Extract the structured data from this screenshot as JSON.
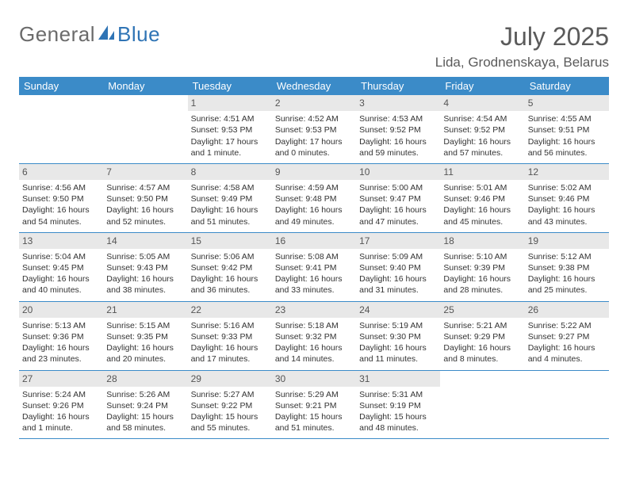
{
  "logo": {
    "text1": "General",
    "text2": "Blue"
  },
  "title": "July 2025",
  "location": "Lida, Grodnenskaya, Belarus",
  "weekdays": [
    "Sunday",
    "Monday",
    "Tuesday",
    "Wednesday",
    "Thursday",
    "Friday",
    "Saturday"
  ],
  "colors": {
    "header_bg": "#3b8bc8",
    "daynum_bg": "#e8e8e8",
    "row_border": "#3b8bc8"
  },
  "weeks": [
    [
      {
        "n": "",
        "sunrise": "",
        "sunset": "",
        "daylight1": "",
        "daylight2": "",
        "empty": true
      },
      {
        "n": "",
        "sunrise": "",
        "sunset": "",
        "daylight1": "",
        "daylight2": "",
        "empty": true
      },
      {
        "n": "1",
        "sunrise": "Sunrise: 4:51 AM",
        "sunset": "Sunset: 9:53 PM",
        "daylight1": "Daylight: 17 hours",
        "daylight2": "and 1 minute."
      },
      {
        "n": "2",
        "sunrise": "Sunrise: 4:52 AM",
        "sunset": "Sunset: 9:53 PM",
        "daylight1": "Daylight: 17 hours",
        "daylight2": "and 0 minutes."
      },
      {
        "n": "3",
        "sunrise": "Sunrise: 4:53 AM",
        "sunset": "Sunset: 9:52 PM",
        "daylight1": "Daylight: 16 hours",
        "daylight2": "and 59 minutes."
      },
      {
        "n": "4",
        "sunrise": "Sunrise: 4:54 AM",
        "sunset": "Sunset: 9:52 PM",
        "daylight1": "Daylight: 16 hours",
        "daylight2": "and 57 minutes."
      },
      {
        "n": "5",
        "sunrise": "Sunrise: 4:55 AM",
        "sunset": "Sunset: 9:51 PM",
        "daylight1": "Daylight: 16 hours",
        "daylight2": "and 56 minutes."
      }
    ],
    [
      {
        "n": "6",
        "sunrise": "Sunrise: 4:56 AM",
        "sunset": "Sunset: 9:50 PM",
        "daylight1": "Daylight: 16 hours",
        "daylight2": "and 54 minutes."
      },
      {
        "n": "7",
        "sunrise": "Sunrise: 4:57 AM",
        "sunset": "Sunset: 9:50 PM",
        "daylight1": "Daylight: 16 hours",
        "daylight2": "and 52 minutes."
      },
      {
        "n": "8",
        "sunrise": "Sunrise: 4:58 AM",
        "sunset": "Sunset: 9:49 PM",
        "daylight1": "Daylight: 16 hours",
        "daylight2": "and 51 minutes."
      },
      {
        "n": "9",
        "sunrise": "Sunrise: 4:59 AM",
        "sunset": "Sunset: 9:48 PM",
        "daylight1": "Daylight: 16 hours",
        "daylight2": "and 49 minutes."
      },
      {
        "n": "10",
        "sunrise": "Sunrise: 5:00 AM",
        "sunset": "Sunset: 9:47 PM",
        "daylight1": "Daylight: 16 hours",
        "daylight2": "and 47 minutes."
      },
      {
        "n": "11",
        "sunrise": "Sunrise: 5:01 AM",
        "sunset": "Sunset: 9:46 PM",
        "daylight1": "Daylight: 16 hours",
        "daylight2": "and 45 minutes."
      },
      {
        "n": "12",
        "sunrise": "Sunrise: 5:02 AM",
        "sunset": "Sunset: 9:46 PM",
        "daylight1": "Daylight: 16 hours",
        "daylight2": "and 43 minutes."
      }
    ],
    [
      {
        "n": "13",
        "sunrise": "Sunrise: 5:04 AM",
        "sunset": "Sunset: 9:45 PM",
        "daylight1": "Daylight: 16 hours",
        "daylight2": "and 40 minutes."
      },
      {
        "n": "14",
        "sunrise": "Sunrise: 5:05 AM",
        "sunset": "Sunset: 9:43 PM",
        "daylight1": "Daylight: 16 hours",
        "daylight2": "and 38 minutes."
      },
      {
        "n": "15",
        "sunrise": "Sunrise: 5:06 AM",
        "sunset": "Sunset: 9:42 PM",
        "daylight1": "Daylight: 16 hours",
        "daylight2": "and 36 minutes."
      },
      {
        "n": "16",
        "sunrise": "Sunrise: 5:08 AM",
        "sunset": "Sunset: 9:41 PM",
        "daylight1": "Daylight: 16 hours",
        "daylight2": "and 33 minutes."
      },
      {
        "n": "17",
        "sunrise": "Sunrise: 5:09 AM",
        "sunset": "Sunset: 9:40 PM",
        "daylight1": "Daylight: 16 hours",
        "daylight2": "and 31 minutes."
      },
      {
        "n": "18",
        "sunrise": "Sunrise: 5:10 AM",
        "sunset": "Sunset: 9:39 PM",
        "daylight1": "Daylight: 16 hours",
        "daylight2": "and 28 minutes."
      },
      {
        "n": "19",
        "sunrise": "Sunrise: 5:12 AM",
        "sunset": "Sunset: 9:38 PM",
        "daylight1": "Daylight: 16 hours",
        "daylight2": "and 25 minutes."
      }
    ],
    [
      {
        "n": "20",
        "sunrise": "Sunrise: 5:13 AM",
        "sunset": "Sunset: 9:36 PM",
        "daylight1": "Daylight: 16 hours",
        "daylight2": "and 23 minutes."
      },
      {
        "n": "21",
        "sunrise": "Sunrise: 5:15 AM",
        "sunset": "Sunset: 9:35 PM",
        "daylight1": "Daylight: 16 hours",
        "daylight2": "and 20 minutes."
      },
      {
        "n": "22",
        "sunrise": "Sunrise: 5:16 AM",
        "sunset": "Sunset: 9:33 PM",
        "daylight1": "Daylight: 16 hours",
        "daylight2": "and 17 minutes."
      },
      {
        "n": "23",
        "sunrise": "Sunrise: 5:18 AM",
        "sunset": "Sunset: 9:32 PM",
        "daylight1": "Daylight: 16 hours",
        "daylight2": "and 14 minutes."
      },
      {
        "n": "24",
        "sunrise": "Sunrise: 5:19 AM",
        "sunset": "Sunset: 9:30 PM",
        "daylight1": "Daylight: 16 hours",
        "daylight2": "and 11 minutes."
      },
      {
        "n": "25",
        "sunrise": "Sunrise: 5:21 AM",
        "sunset": "Sunset: 9:29 PM",
        "daylight1": "Daylight: 16 hours",
        "daylight2": "and 8 minutes."
      },
      {
        "n": "26",
        "sunrise": "Sunrise: 5:22 AM",
        "sunset": "Sunset: 9:27 PM",
        "daylight1": "Daylight: 16 hours",
        "daylight2": "and 4 minutes."
      }
    ],
    [
      {
        "n": "27",
        "sunrise": "Sunrise: 5:24 AM",
        "sunset": "Sunset: 9:26 PM",
        "daylight1": "Daylight: 16 hours",
        "daylight2": "and 1 minute."
      },
      {
        "n": "28",
        "sunrise": "Sunrise: 5:26 AM",
        "sunset": "Sunset: 9:24 PM",
        "daylight1": "Daylight: 15 hours",
        "daylight2": "and 58 minutes."
      },
      {
        "n": "29",
        "sunrise": "Sunrise: 5:27 AM",
        "sunset": "Sunset: 9:22 PM",
        "daylight1": "Daylight: 15 hours",
        "daylight2": "and 55 minutes."
      },
      {
        "n": "30",
        "sunrise": "Sunrise: 5:29 AM",
        "sunset": "Sunset: 9:21 PM",
        "daylight1": "Daylight: 15 hours",
        "daylight2": "and 51 minutes."
      },
      {
        "n": "31",
        "sunrise": "Sunrise: 5:31 AM",
        "sunset": "Sunset: 9:19 PM",
        "daylight1": "Daylight: 15 hours",
        "daylight2": "and 48 minutes."
      },
      {
        "n": "",
        "sunrise": "",
        "sunset": "",
        "daylight1": "",
        "daylight2": "",
        "empty": true
      },
      {
        "n": "",
        "sunrise": "",
        "sunset": "",
        "daylight1": "",
        "daylight2": "",
        "empty": true
      }
    ]
  ]
}
